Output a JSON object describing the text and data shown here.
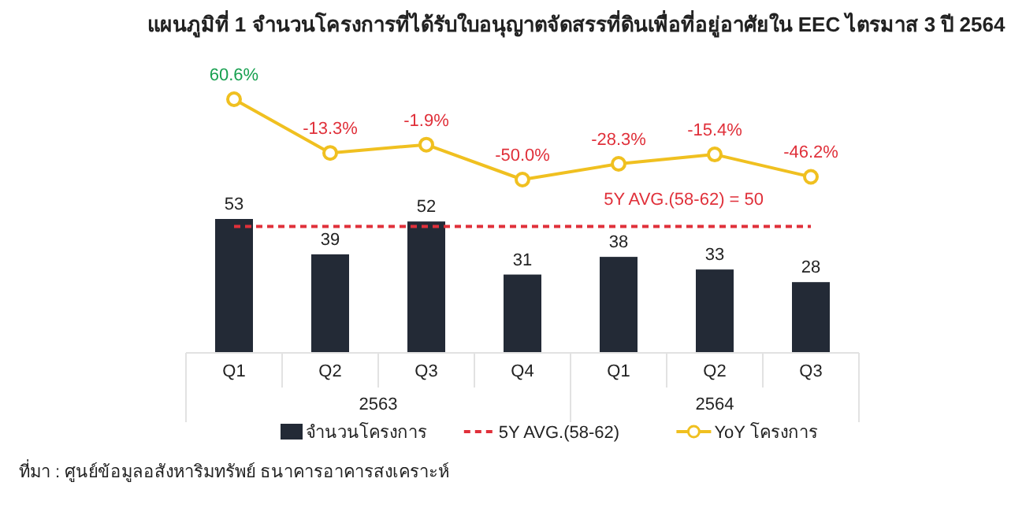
{
  "chart_data": [
    {
      "type": "line",
      "title": "แผนภูมิที่ 1 จำนวนโครงการที่ได้รับใบอนุญาตจัดสรรที่ดินเพื่อที่อยู่อาศัยใน EEC ไตรมาส 3 ปี 2564",
      "categories": [
        null,
        null,
        null,
        null,
        null,
        null,
        null
      ],
      "marker": "circle",
      "series": [
        {
          "name": "YoY  โครงการ",
          "color": "#f0c020",
          "values": [
            60.6,
            -13.3,
            -1.9,
            -50.0,
            -28.3,
            -15.4,
            -46.2
          ],
          "value_labels": [
            "60.6%",
            "-13.3%",
            "-1.9%",
            "-50.0%",
            "-28.3%",
            "-15.4%",
            "-46.2%"
          ]
        }
      ]
    },
    {
      "type": "bar",
      "categories": [
        "Q1",
        "Q2",
        "Q3",
        "Q4",
        "Q1",
        "Q2",
        "Q3"
      ],
      "series": [
        {
          "name": "จำนวนโครงการ",
          "color": "#232a36",
          "values": [
            53,
            39,
            52,
            31,
            38,
            33,
            28
          ]
        }
      ],
      "ylim": [
        0,
        53
      ],
      "ref_lines": [
        {
          "axis": "y",
          "value": 50,
          "label": "5Y AVG.(58-62)",
          "color": "#e0303a",
          "line_style": "dashed"
        }
      ],
      "annotations": [
        "2563",
        "2564",
        {
          "text": "5Y AVG.(58-62) =  50",
          "y": 50
        },
        "ที่มา : ศูนย์ข้อมูลอสังหาริมทรัพย์ ธนาคารอาคารสงเคราะห์"
      ],
      "data_labels": true,
      "legend": "bottom"
    }
  ]
}
